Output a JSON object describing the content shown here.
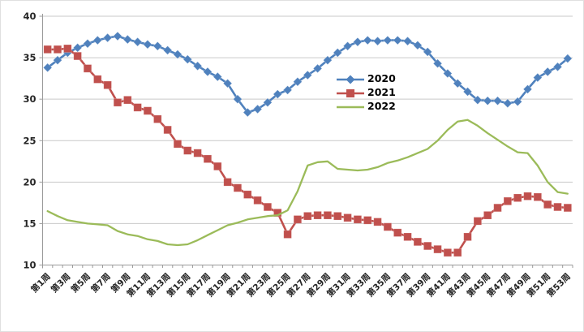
{
  "chart_data": {
    "type": "line",
    "title": "",
    "xlabel": "",
    "ylabel": "",
    "ylim": [
      10,
      40
    ],
    "y_ticks": [
      10,
      15,
      20,
      25,
      30,
      35,
      40
    ],
    "grid": true,
    "legend_position": "center-right",
    "x_label_every": 2,
    "categories": [
      "第1周",
      "第2周",
      "第3周",
      "第4周",
      "第5周",
      "第6周",
      "第7周",
      "第8周",
      "第9周",
      "第10周",
      "第11周",
      "第12周",
      "第13周",
      "第14周",
      "第15周",
      "第16周",
      "第17周",
      "第18周",
      "第19周",
      "第20周",
      "第21周",
      "第22周",
      "第23周",
      "第24周",
      "第25周",
      "第26周",
      "第27周",
      "第28周",
      "第29周",
      "第30周",
      "第31周",
      "第32周",
      "第33周",
      "第34周",
      "第35周",
      "第36周",
      "第37周",
      "第38周",
      "第39周",
      "第40周",
      "第41周",
      "第42周",
      "第43周",
      "第44周",
      "第45周",
      "第46周",
      "第47周",
      "第48周",
      "第49周",
      "第50周",
      "第51周",
      "第52周",
      "第53周"
    ],
    "series": [
      {
        "name": "2020",
        "color": "#4F81BD",
        "marker": "diamond",
        "values": [
          33.8,
          34.7,
          35.6,
          36.2,
          36.7,
          37.1,
          37.4,
          37.6,
          37.2,
          36.9,
          36.6,
          36.4,
          35.9,
          35.4,
          34.8,
          34.0,
          33.3,
          32.7,
          31.9,
          30.0,
          28.4,
          28.8,
          29.6,
          30.6,
          31.1,
          32.1,
          32.9,
          33.7,
          34.7,
          35.6,
          36.4,
          36.9,
          37.1,
          37.0,
          37.1,
          37.1,
          37.0,
          36.5,
          35.7,
          34.3,
          33.1,
          31.9,
          30.9,
          29.9,
          29.8,
          29.8,
          29.5,
          29.7,
          31.2,
          32.6,
          33.3,
          33.9,
          34.9
        ]
      },
      {
        "name": "2021",
        "color": "#C0504D",
        "marker": "square",
        "values": [
          36.0,
          36.0,
          36.1,
          35.2,
          33.7,
          32.4,
          31.7,
          29.6,
          29.9,
          29.0,
          28.6,
          27.6,
          26.3,
          24.6,
          23.8,
          23.5,
          22.8,
          21.9,
          20.0,
          19.3,
          18.5,
          17.8,
          17.0,
          16.3,
          13.7,
          15.5,
          15.9,
          16.0,
          16.0,
          15.9,
          15.7,
          15.5,
          15.4,
          15.2,
          14.6,
          13.9,
          13.4,
          12.8,
          12.3,
          11.9,
          11.5,
          11.5,
          13.4,
          15.3,
          16.0,
          16.9,
          17.7,
          18.1,
          18.3,
          18.2,
          17.3,
          17.0,
          16.9
        ]
      },
      {
        "name": "2022",
        "color": "#9BBB59",
        "marker": "none",
        "values": [
          16.5,
          15.9,
          15.4,
          15.2,
          15.0,
          14.9,
          14.8,
          14.1,
          13.7,
          13.5,
          13.1,
          12.9,
          12.5,
          12.4,
          12.5,
          13.0,
          13.6,
          14.2,
          14.8,
          15.1,
          15.5,
          15.7,
          15.9,
          16.0,
          16.6,
          18.9,
          22.0,
          22.4,
          22.5,
          21.6,
          21.5,
          21.4,
          21.5,
          21.8,
          22.3,
          22.6,
          23.0,
          23.5,
          24.0,
          25.0,
          26.3,
          27.3,
          27.5,
          26.8,
          25.9,
          25.1,
          24.3,
          23.6,
          23.5,
          22.0,
          20.0,
          18.8,
          18.6
        ]
      }
    ],
    "colors": {
      "background": "#FFFFFF",
      "gridline": "#C9C9C9",
      "axis": "#9B9B9B",
      "tick_text": "#262626"
    }
  }
}
